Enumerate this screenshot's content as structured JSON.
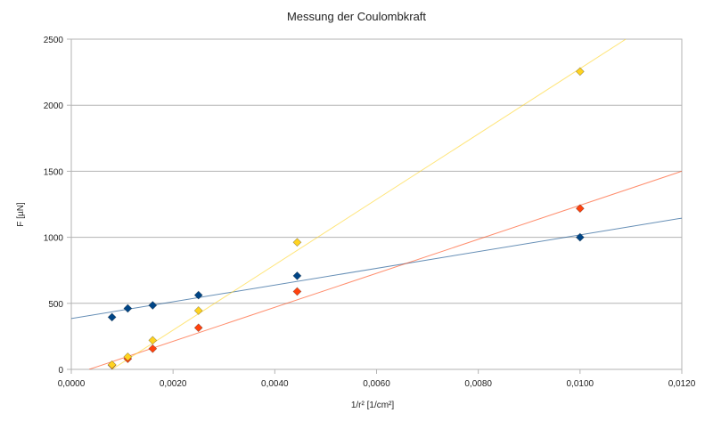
{
  "chart_data": {
    "type": "scatter",
    "title": "Messung der Coulombkraft",
    "xlabel": "1/r² [1/cm²]",
    "ylabel": "F [µN]",
    "xlim": [
      0,
      0.012
    ],
    "ylim": [
      0,
      2500
    ],
    "x_ticks": [
      "0,0000",
      "0,0020",
      "0,0040",
      "0,0060",
      "0,0080",
      "0,0100",
      "0,0120"
    ],
    "y_ticks": [
      "0",
      "500",
      "1000",
      "1500",
      "2000",
      "2500"
    ],
    "grid": "horizontal",
    "series": [
      {
        "color": "#004586",
        "marker": "diamond",
        "points": [
          [
            0.0008,
            395
          ],
          [
            0.00111,
            462
          ],
          [
            0.0016,
            485
          ],
          [
            0.0025,
            562
          ],
          [
            0.00444,
            708
          ],
          [
            0.01,
            1000
          ]
        ],
        "trend": [
          [
            0,
            385
          ],
          [
            0.012,
            1145
          ]
        ]
      },
      {
        "color": "#ff420e",
        "marker": "diamond",
        "points": [
          [
            0.0008,
            32
          ],
          [
            0.00111,
            80
          ],
          [
            0.0016,
            157
          ],
          [
            0.0025,
            315
          ],
          [
            0.00444,
            590
          ],
          [
            0.01,
            1218
          ]
        ],
        "trend": [
          [
            0.00035,
            0
          ],
          [
            0.012,
            1500
          ]
        ]
      },
      {
        "color": "#ffd320",
        "marker": "diamond",
        "points": [
          [
            0.0008,
            35
          ],
          [
            0.00111,
            95
          ],
          [
            0.0016,
            220
          ],
          [
            0.0025,
            445
          ],
          [
            0.00444,
            962
          ],
          [
            0.01,
            2255
          ]
        ],
        "trend": [
          [
            0.0008,
            0
          ],
          [
            0.0109,
            2500
          ]
        ]
      }
    ]
  }
}
